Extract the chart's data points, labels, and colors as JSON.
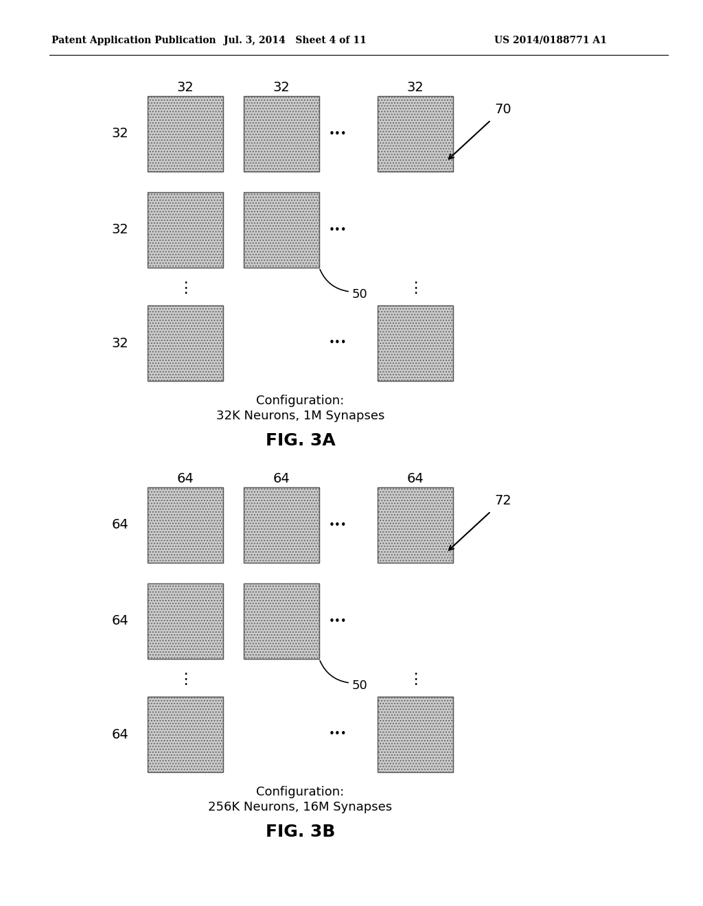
{
  "bg_color": "#ffffff",
  "header_left": "Patent Application Publication",
  "header_mid": "Jul. 3, 2014   Sheet 4 of 11",
  "header_right": "US 2014/0188771 A1",
  "fig_a": {
    "title": "FIG. 3A",
    "config_line1": "Configuration:",
    "config_line2": "32K Neurons, 1M Synapses",
    "label_top": [
      "32",
      "32",
      "32"
    ],
    "label_left": [
      "32",
      "32",
      "32"
    ],
    "ref_label": "70",
    "ref_50_label": "50"
  },
  "fig_b": {
    "title": "FIG. 3B",
    "config_line1": "Configuration:",
    "config_line2": "256K Neurons, 16M Synapses",
    "label_top": [
      "64",
      "64",
      "64"
    ],
    "label_left": [
      "64",
      "64",
      "64"
    ],
    "ref_label": "72",
    "ref_50_label": "50"
  }
}
